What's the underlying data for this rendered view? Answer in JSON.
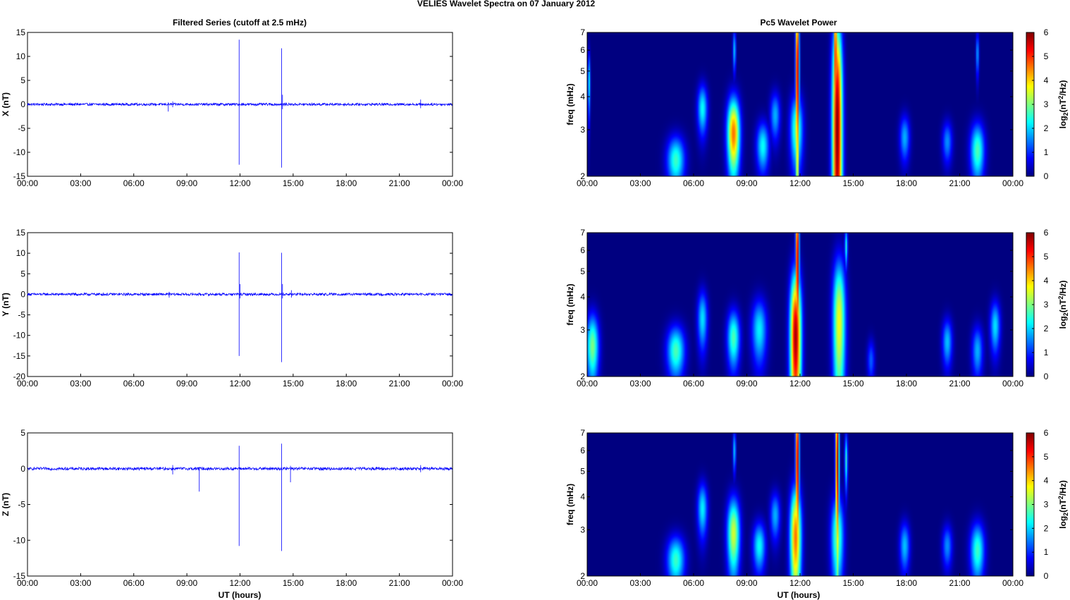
{
  "figure": {
    "suptitle": "VELIES Wavelet Spectra on 07 January   2012",
    "left_title": "Filtered Series (cutoff at 2.5 mHz)",
    "right_title": "Pc5 Wavelet Power",
    "xlabel": "UT (hours)"
  },
  "colors": {
    "series_line": "#0000ff",
    "colormap": "jet",
    "background": "#ffffff"
  },
  "chart_data": [
    {
      "type": "line",
      "component": "X",
      "ylabel": "X (nT)",
      "ylim": [
        -15,
        15
      ],
      "yticks": [
        -15,
        -10,
        -5,
        0,
        5,
        10,
        15
      ],
      "yticklabels": [
        "-15",
        "-10",
        "-5",
        "0",
        "5",
        "10",
        "15"
      ],
      "xlim_hours": [
        0,
        24
      ],
      "xticklabels": [
        "00:00",
        "03:00",
        "06:00",
        "09:00",
        "12:00",
        "15:00",
        "18:00",
        "21:00",
        "00:00"
      ],
      "noise_amplitude_nT": 0.25,
      "spikes": [
        {
          "t": 7.95,
          "max": 0.4,
          "min": -1.5
        },
        {
          "t": 8.2,
          "max": 0.6,
          "min": -0.6
        },
        {
          "t": 11.95,
          "max": 13.5,
          "min": -12.6
        },
        {
          "t": 14.35,
          "max": 11.7,
          "min": -13.2
        },
        {
          "t": 14.4,
          "max": 2.0,
          "min": -1.0
        },
        {
          "t": 22.2,
          "max": 1.0,
          "min": -0.8
        }
      ]
    },
    {
      "type": "line",
      "component": "Y",
      "ylabel": "Y (nT)",
      "ylim": [
        -20,
        15
      ],
      "yticks": [
        -20,
        -15,
        -10,
        -5,
        0,
        5,
        10,
        15
      ],
      "yticklabels": [
        "-20",
        "-15",
        "-10",
        "-5",
        "0",
        "5",
        "10",
        "15"
      ],
      "xlim_hours": [
        0,
        24
      ],
      "xticklabels": [
        "00:00",
        "03:00",
        "06:00",
        "09:00",
        "12:00",
        "15:00",
        "18:00",
        "21:00",
        "00:00"
      ],
      "noise_amplitude_nT": 0.3,
      "spikes": [
        {
          "t": 8.0,
          "max": 0.6,
          "min": -0.8
        },
        {
          "t": 11.95,
          "max": 10.2,
          "min": -15.0
        },
        {
          "t": 12.0,
          "max": 2.5,
          "min": -1.0
        },
        {
          "t": 14.35,
          "max": 10.1,
          "min": -16.5
        },
        {
          "t": 14.4,
          "max": 2.5,
          "min": -1.0
        },
        {
          "t": 14.9,
          "max": 1.0,
          "min": -0.8
        }
      ]
    },
    {
      "type": "line",
      "component": "Z",
      "ylabel": "Z (nT)",
      "ylim": [
        -15,
        5
      ],
      "yticks": [
        -15,
        -10,
        -5,
        0,
        5
      ],
      "yticklabels": [
        "-15",
        "-10",
        "-5",
        "0",
        "5"
      ],
      "xlim_hours": [
        0,
        24
      ],
      "xticklabels": [
        "00:00",
        "03:00",
        "06:00",
        "09:00",
        "12:00",
        "15:00",
        "18:00",
        "21:00",
        "00:00"
      ],
      "noise_amplitude_nT": 0.2,
      "spikes": [
        {
          "t": 8.2,
          "max": 0.5,
          "min": -0.8
        },
        {
          "t": 9.7,
          "max": 0.2,
          "min": -3.2
        },
        {
          "t": 11.95,
          "max": 3.2,
          "min": -10.8
        },
        {
          "t": 14.35,
          "max": 3.5,
          "min": -11.5
        },
        {
          "t": 14.85,
          "max": 0.4,
          "min": -1.9
        },
        {
          "t": 22.2,
          "max": 0.5,
          "min": -0.5
        }
      ]
    },
    {
      "type": "heatmap",
      "component": "X",
      "ylabel": "freq (mHz)",
      "ylim_mHz": [
        2,
        7
      ],
      "yscale": "log",
      "yticks": [
        2,
        3,
        4,
        5,
        6,
        7
      ],
      "yticklabels": [
        "2",
        "3",
        "4",
        "5",
        "6",
        "7"
      ],
      "xlim_hours": [
        0,
        24
      ],
      "xticklabels": [
        "00:00",
        "03:00",
        "06:00",
        "09:00",
        "12:00",
        "15:00",
        "18:00",
        "21:00",
        "00:00"
      ],
      "colorbar": {
        "label": "log2(nT2/Hz)",
        "range": [
          0,
          6
        ],
        "ticks": [
          "0",
          "1",
          "2",
          "3",
          "4",
          "5",
          "6"
        ]
      },
      "features": [
        {
          "t": 0.1,
          "f": 4.5,
          "peak": 2.4,
          "sigma_t": 0.05,
          "sigma_f": 0.9
        },
        {
          "t": 5.0,
          "f": 2.3,
          "peak": 2.6,
          "sigma_t": 0.35,
          "sigma_f": 0.35
        },
        {
          "t": 6.5,
          "f": 3.6,
          "peak": 2.3,
          "sigma_t": 0.2,
          "sigma_f": 0.55
        },
        {
          "t": 8.25,
          "f": 2.9,
          "peak": 4.6,
          "sigma_t": 0.25,
          "sigma_f": 0.7
        },
        {
          "t": 8.3,
          "f": 6.0,
          "peak": 2.0,
          "sigma_t": 0.06,
          "sigma_f": 0.8
        },
        {
          "t": 9.9,
          "f": 2.6,
          "peak": 2.3,
          "sigma_t": 0.25,
          "sigma_f": 0.4
        },
        {
          "t": 10.6,
          "f": 3.4,
          "peak": 1.8,
          "sigma_t": 0.2,
          "sigma_f": 0.5
        },
        {
          "t": 11.8,
          "f": 3.0,
          "peak": 2.8,
          "sigma_t": 0.25,
          "sigma_f": 0.7
        },
        {
          "t": 11.85,
          "f": 5.0,
          "peak": 6.0,
          "sigma_t": 0.07,
          "sigma_f": 3.0
        },
        {
          "t": 14.1,
          "f": 3.0,
          "peak": 6.0,
          "sigma_t": 0.2,
          "sigma_f": 3.0
        },
        {
          "t": 14.0,
          "f": 5.5,
          "peak": 5.5,
          "sigma_t": 0.07,
          "sigma_f": 3.0
        },
        {
          "t": 17.9,
          "f": 2.8,
          "peak": 1.8,
          "sigma_t": 0.2,
          "sigma_f": 0.4
        },
        {
          "t": 20.3,
          "f": 2.7,
          "peak": 1.6,
          "sigma_t": 0.2,
          "sigma_f": 0.35
        },
        {
          "t": 22.0,
          "f": 2.5,
          "peak": 2.7,
          "sigma_t": 0.28,
          "sigma_f": 0.45
        },
        {
          "t": 22.0,
          "f": 5.8,
          "peak": 1.8,
          "sigma_t": 0.06,
          "sigma_f": 0.8
        }
      ]
    },
    {
      "type": "heatmap",
      "component": "Y",
      "ylabel": "freq (mHz)",
      "ylim_mHz": [
        2,
        7
      ],
      "yscale": "log",
      "yticks": [
        2,
        3,
        4,
        5,
        6,
        7
      ],
      "yticklabels": [
        "2",
        "3",
        "4",
        "5",
        "6",
        "7"
      ],
      "xlim_hours": [
        0,
        24
      ],
      "xticklabels": [
        "00:00",
        "03:00",
        "06:00",
        "09:00",
        "12:00",
        "15:00",
        "18:00",
        "21:00",
        "00:00"
      ],
      "colorbar": {
        "label": "log2(nT2/Hz)",
        "range": [
          0,
          6
        ],
        "ticks": [
          "0",
          "1",
          "2",
          "3",
          "4",
          "5",
          "6"
        ]
      },
      "features": [
        {
          "t": 0.3,
          "f": 2.6,
          "peak": 3.0,
          "sigma_t": 0.25,
          "sigma_f": 0.55
        },
        {
          "t": 5.0,
          "f": 2.5,
          "peak": 2.7,
          "sigma_t": 0.35,
          "sigma_f": 0.4
        },
        {
          "t": 6.5,
          "f": 3.3,
          "peak": 2.1,
          "sigma_t": 0.2,
          "sigma_f": 0.6
        },
        {
          "t": 8.25,
          "f": 2.8,
          "peak": 2.7,
          "sigma_t": 0.25,
          "sigma_f": 0.5
        },
        {
          "t": 9.7,
          "f": 3.0,
          "peak": 2.2,
          "sigma_t": 0.3,
          "sigma_f": 0.6
        },
        {
          "t": 11.75,
          "f": 2.8,
          "peak": 5.8,
          "sigma_t": 0.22,
          "sigma_f": 1.4
        },
        {
          "t": 11.85,
          "f": 5.5,
          "peak": 6.0,
          "sigma_t": 0.07,
          "sigma_f": 3.0
        },
        {
          "t": 14.2,
          "f": 3.2,
          "peak": 3.7,
          "sigma_t": 0.25,
          "sigma_f": 1.5
        },
        {
          "t": 14.6,
          "f": 6.2,
          "peak": 2.4,
          "sigma_t": 0.06,
          "sigma_f": 0.8
        },
        {
          "t": 16.0,
          "f": 2.3,
          "peak": 1.3,
          "sigma_t": 0.15,
          "sigma_f": 0.3
        },
        {
          "t": 20.3,
          "f": 2.7,
          "peak": 1.9,
          "sigma_t": 0.2,
          "sigma_f": 0.4
        },
        {
          "t": 22.0,
          "f": 2.5,
          "peak": 1.8,
          "sigma_t": 0.22,
          "sigma_f": 0.4
        },
        {
          "t": 23.0,
          "f": 3.1,
          "peak": 2.1,
          "sigma_t": 0.2,
          "sigma_f": 0.5
        }
      ]
    },
    {
      "type": "heatmap",
      "component": "Z",
      "ylabel": "freq (mHz)",
      "ylim_mHz": [
        2,
        7
      ],
      "yscale": "log",
      "yticks": [
        2,
        3,
        4,
        5,
        6,
        7
      ],
      "yticklabels": [
        "2",
        "3",
        "4",
        "5",
        "6",
        "7"
      ],
      "xlim_hours": [
        0,
        24
      ],
      "xticklabels": [
        "00:00",
        "03:00",
        "06:00",
        "09:00",
        "12:00",
        "15:00",
        "18:00",
        "21:00",
        "00:00"
      ],
      "colorbar": {
        "label": "log2(nT2/Hz)",
        "range": [
          0,
          6
        ],
        "ticks": [
          "0",
          "1",
          "2",
          "3",
          "4",
          "5",
          "6"
        ]
      },
      "features": [
        {
          "t": 5.0,
          "f": 2.3,
          "peak": 2.6,
          "sigma_t": 0.35,
          "sigma_f": 0.35
        },
        {
          "t": 6.5,
          "f": 3.6,
          "peak": 2.2,
          "sigma_t": 0.2,
          "sigma_f": 0.6
        },
        {
          "t": 8.25,
          "f": 2.9,
          "peak": 3.5,
          "sigma_t": 0.25,
          "sigma_f": 0.7
        },
        {
          "t": 8.3,
          "f": 6.0,
          "peak": 2.0,
          "sigma_t": 0.06,
          "sigma_f": 0.8
        },
        {
          "t": 9.7,
          "f": 2.6,
          "peak": 2.3,
          "sigma_t": 0.25,
          "sigma_f": 0.4
        },
        {
          "t": 10.6,
          "f": 3.4,
          "peak": 1.8,
          "sigma_t": 0.2,
          "sigma_f": 0.5
        },
        {
          "t": 11.75,
          "f": 2.8,
          "peak": 4.6,
          "sigma_t": 0.22,
          "sigma_f": 1.0
        },
        {
          "t": 11.85,
          "f": 5.5,
          "peak": 6.0,
          "sigma_t": 0.07,
          "sigma_f": 3.0
        },
        {
          "t": 14.1,
          "f": 2.8,
          "peak": 2.9,
          "sigma_t": 0.25,
          "sigma_f": 0.8
        },
        {
          "t": 14.1,
          "f": 5.5,
          "peak": 6.0,
          "sigma_t": 0.07,
          "sigma_f": 3.0
        },
        {
          "t": 14.6,
          "f": 5.5,
          "peak": 2.5,
          "sigma_t": 0.06,
          "sigma_f": 1.0
        },
        {
          "t": 17.9,
          "f": 2.6,
          "peak": 1.9,
          "sigma_t": 0.2,
          "sigma_f": 0.4
        },
        {
          "t": 20.3,
          "f": 2.6,
          "peak": 1.6,
          "sigma_t": 0.2,
          "sigma_f": 0.35
        },
        {
          "t": 22.0,
          "f": 2.5,
          "peak": 2.6,
          "sigma_t": 0.28,
          "sigma_f": 0.45
        }
      ]
    }
  ]
}
